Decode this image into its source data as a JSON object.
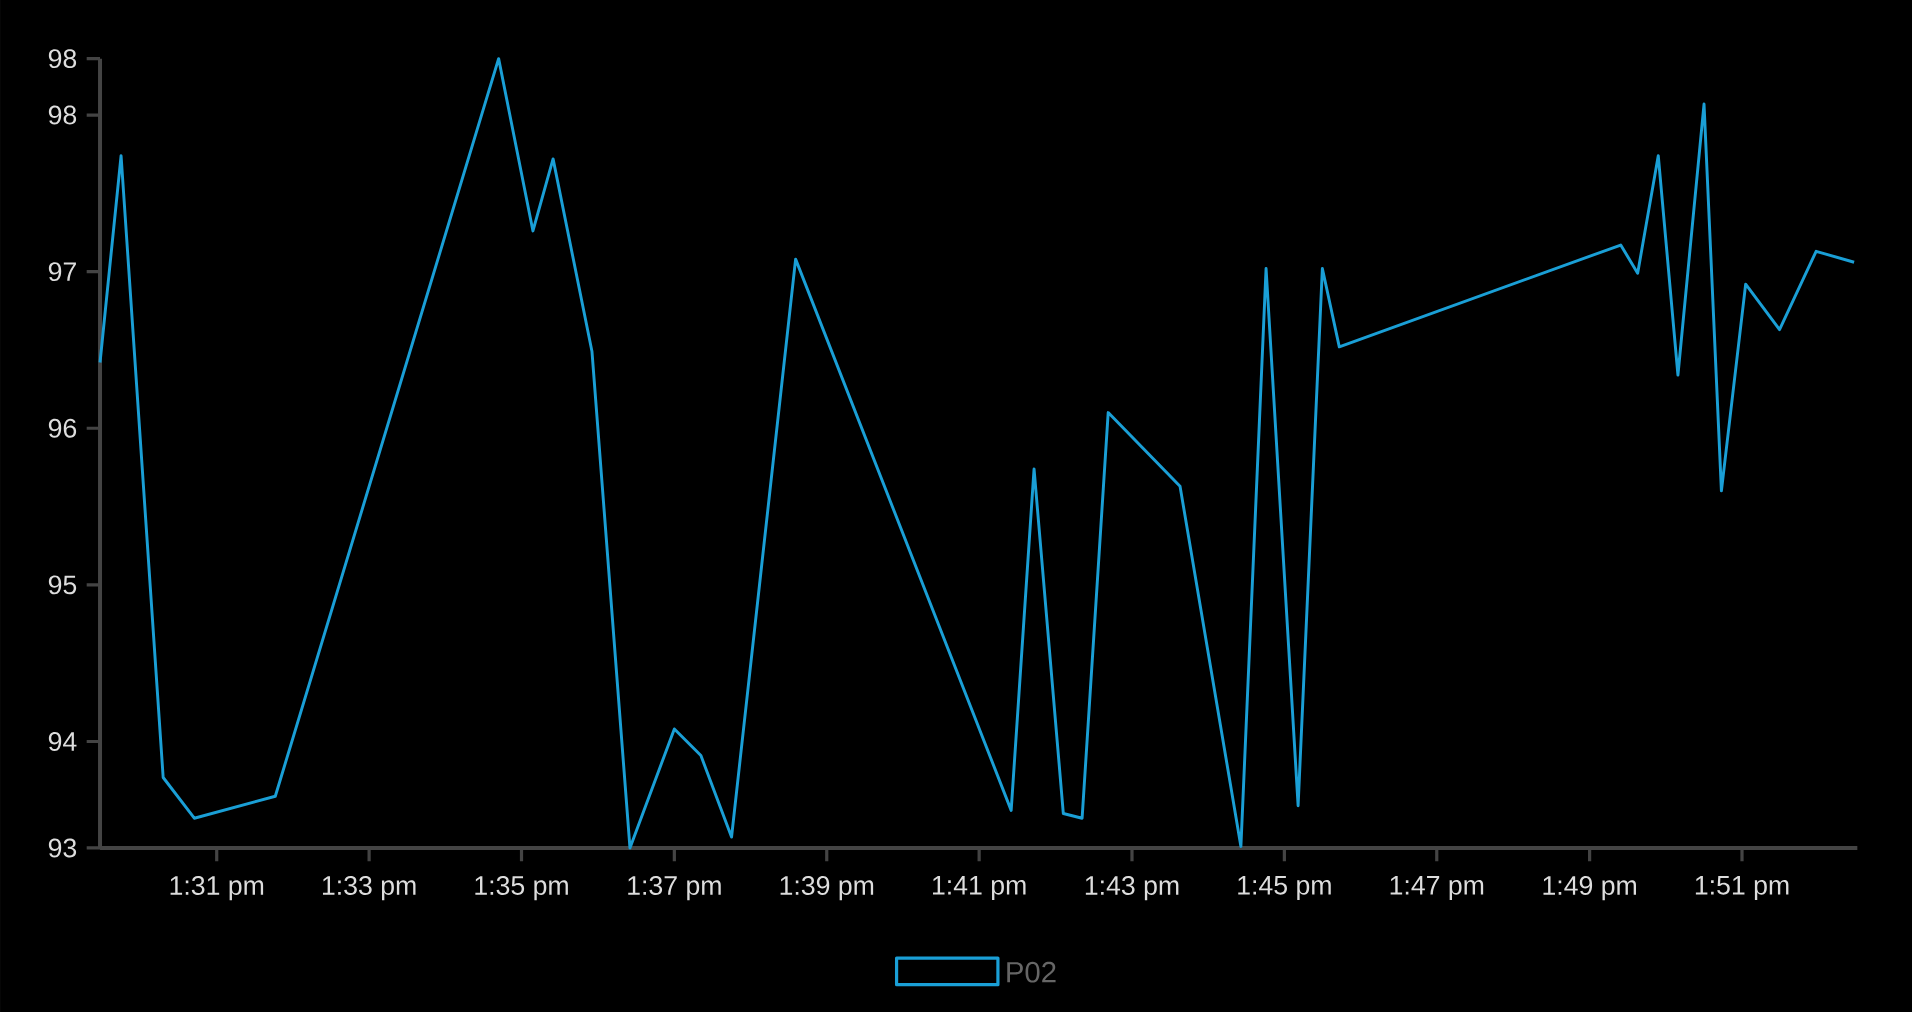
{
  "chart_data": {
    "type": "line",
    "x": [
      13.4912,
      13.4958,
      13.505,
      13.5118,
      13.5295,
      13.5783,
      13.5858,
      13.5902,
      13.5987,
      13.607,
      13.6167,
      13.6225,
      13.6292,
      13.6432,
      13.6903,
      13.6953,
      13.7017,
      13.7058,
      13.7115,
      13.7272,
      13.7405,
      13.746,
      13.753,
      13.7583,
      13.762,
      13.8235,
      13.8272,
      13.8317,
      13.836,
      13.8417,
      13.8455,
      13.8508,
      13.8582,
      13.8662,
      13.8745
    ],
    "series": [
      {
        "name": "P02",
        "color": "#1a9fd6",
        "values": [
          96.42,
          97.74,
          93.77,
          93.51,
          93.65,
          98.36,
          97.26,
          97.72,
          96.49,
          93.32,
          94.08,
          93.91,
          93.39,
          97.08,
          93.56,
          95.74,
          93.54,
          93.51,
          96.1,
          95.63,
          93.33,
          97.02,
          93.59,
          97.02,
          96.52,
          97.17,
          96.99,
          97.74,
          96.34,
          98.07,
          95.6,
          96.92,
          96.63,
          97.13,
          97.06
        ]
      }
    ],
    "xlim": [
      13.4912,
      13.8752
    ],
    "xticks": [
      {
        "value": 13.5167,
        "label": "1:31 pm"
      },
      {
        "value": 13.55,
        "label": "1:33 pm"
      },
      {
        "value": 13.5833,
        "label": "1:35 pm"
      },
      {
        "value": 13.6167,
        "label": "1:37 pm"
      },
      {
        "value": 13.65,
        "label": "1:39 pm"
      },
      {
        "value": 13.6833,
        "label": "1:41 pm"
      },
      {
        "value": 13.7167,
        "label": "1:43 pm"
      },
      {
        "value": 13.75,
        "label": "1:45 pm"
      },
      {
        "value": 13.7833,
        "label": "1:47 pm"
      },
      {
        "value": 13.8167,
        "label": "1:49 pm"
      },
      {
        "value": 13.85,
        "label": "1:51 pm"
      }
    ],
    "ylim": [
      93.32,
      98.36
    ],
    "yticks": [
      {
        "value": 93.32,
        "label": "93"
      },
      94,
      95,
      96,
      97,
      98,
      {
        "value": 98.36,
        "label": "98"
      }
    ],
    "legend": "bottom",
    "marker": "none",
    "line_style": "solid",
    "grid": false
  }
}
